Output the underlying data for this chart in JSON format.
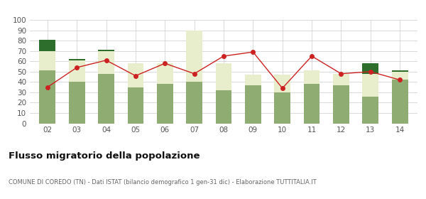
{
  "years": [
    "02",
    "03",
    "04",
    "05",
    "06",
    "07",
    "08",
    "09",
    "10",
    "11",
    "12",
    "13",
    "14"
  ],
  "iscritti_altri_comuni": [
    51,
    40,
    48,
    35,
    38,
    40,
    32,
    37,
    30,
    38,
    37,
    26,
    42
  ],
  "iscritti_estero": [
    19,
    21,
    22,
    23,
    20,
    50,
    26,
    10,
    17,
    13,
    11,
    22,
    8
  ],
  "iscritti_altri": [
    11,
    1,
    1,
    0,
    0,
    0,
    0,
    0,
    0,
    0,
    0,
    10,
    1
  ],
  "cancellati": [
    35,
    54,
    61,
    46,
    58,
    48,
    65,
    69,
    34,
    65,
    48,
    50,
    42
  ],
  "color_altri_comuni": "#8fac72",
  "color_estero": "#e8edcc",
  "color_altri": "#2d6e2d",
  "color_cancellati": "#cc2222",
  "title": "Flusso migratorio della popolazione",
  "subtitle": "COMUNE DI COREDO (TN) - Dati ISTAT (bilancio demografico 1 gen-31 dic) - Elaborazione TUTTITALIA.IT",
  "ylim": [
    0,
    100
  ],
  "yticks": [
    0,
    10,
    20,
    30,
    40,
    50,
    60,
    70,
    80,
    90,
    100
  ],
  "background_color": "#ffffff",
  "grid_color": "#cccccc"
}
